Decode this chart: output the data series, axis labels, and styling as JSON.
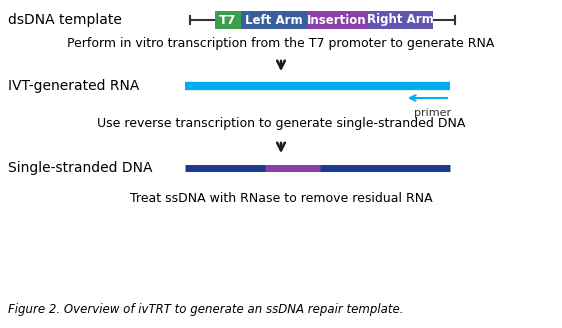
{
  "bg_color": "#ffffff",
  "title_label": "dsDNA template",
  "row1_label": "IVT-generated RNA",
  "row2_label": "Single-stranded DNA",
  "caption": "Figure 2. Overview of ivTRT to generate an ssDNA repair template.",
  "step1_text": "Perform in vitro transcription from the T7 promoter to generate RNA",
  "step2_text": "Use reverse transcription to generate single-stranded DNA",
  "step3_text": "Treat ssDNA with RNase to remove residual RNA",
  "t7_color": "#3a9e4e",
  "leftarm_color": "#3a5fa0",
  "insertion_color": "#8b3fa8",
  "rightarm_color": "#6055b0",
  "line_color": "#333333",
  "rna_color": "#00aeef",
  "primer_color": "#00aeef",
  "ssdna_blue_color": "#1a3a8c",
  "ssdna_purple_color": "#8b3fa8",
  "arrow_color": "#1a1a1a",
  "primer_text_color": "#333333",
  "label_fontsize": 10,
  "step_fontsize": 9,
  "caption_fontsize": 8.5
}
